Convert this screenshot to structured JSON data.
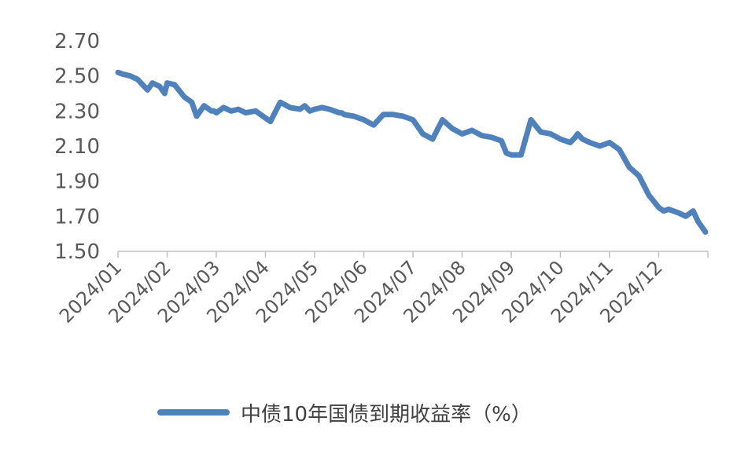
{
  "chart_data": {
    "type": "line",
    "title": "",
    "xlabel": "",
    "ylabel": "",
    "ylim": [
      1.5,
      2.7
    ],
    "yticks": [
      "2.70",
      "2.50",
      "2.30",
      "2.10",
      "1.90",
      "1.70",
      "1.50"
    ],
    "categories": [
      "2024/01",
      "2024/02",
      "2024/03",
      "2024/04",
      "2024/05",
      "2024/06",
      "2024/07",
      "2024/08",
      "2024/09",
      "2024/10",
      "2024/11",
      "2024/12"
    ],
    "legend": "bottom",
    "line_color": "#4f81bd",
    "grid": false,
    "series": [
      {
        "name": "中债10年国债到期收益率（%）",
        "x": [
          0.0,
          0.1,
          0.25,
          0.4,
          0.6,
          0.7,
          0.85,
          0.95,
          1.0,
          1.15,
          1.35,
          1.5,
          1.6,
          1.75,
          1.9,
          1.95,
          2.0,
          2.15,
          2.3,
          2.45,
          2.6,
          2.8,
          2.95,
          3.1,
          3.3,
          3.5,
          3.7,
          3.8,
          3.9,
          4.0,
          4.15,
          4.3,
          4.5,
          4.55,
          4.6,
          4.8,
          5.0,
          5.2,
          5.4,
          5.6,
          5.8,
          6.0,
          6.2,
          6.4,
          6.6,
          6.8,
          7.0,
          7.2,
          7.4,
          7.6,
          7.8,
          7.9,
          8.0,
          8.2,
          8.4,
          8.6,
          8.8,
          9.0,
          9.2,
          9.3,
          9.35,
          9.45,
          9.6,
          9.8,
          10.0,
          10.2,
          10.4,
          10.6,
          10.8,
          11.0,
          11.1,
          11.2,
          11.4,
          11.55,
          11.7,
          11.8,
          11.95
        ],
        "values": [
          2.52,
          2.51,
          2.5,
          2.48,
          2.42,
          2.46,
          2.44,
          2.4,
          2.46,
          2.45,
          2.38,
          2.35,
          2.27,
          2.33,
          2.3,
          2.3,
          2.29,
          2.32,
          2.3,
          2.31,
          2.29,
          2.3,
          2.27,
          2.24,
          2.35,
          2.32,
          2.31,
          2.33,
          2.3,
          2.31,
          2.32,
          2.31,
          2.29,
          2.29,
          2.28,
          2.27,
          2.25,
          2.22,
          2.28,
          2.28,
          2.27,
          2.25,
          2.17,
          2.14,
          2.25,
          2.2,
          2.17,
          2.19,
          2.16,
          2.15,
          2.13,
          2.06,
          2.05,
          2.05,
          2.25,
          2.18,
          2.17,
          2.14,
          2.12,
          2.15,
          2.17,
          2.14,
          2.12,
          2.1,
          2.12,
          2.08,
          1.98,
          1.93,
          1.82,
          1.75,
          1.73,
          1.74,
          1.72,
          1.7,
          1.73,
          1.67,
          1.61
        ]
      }
    ]
  }
}
